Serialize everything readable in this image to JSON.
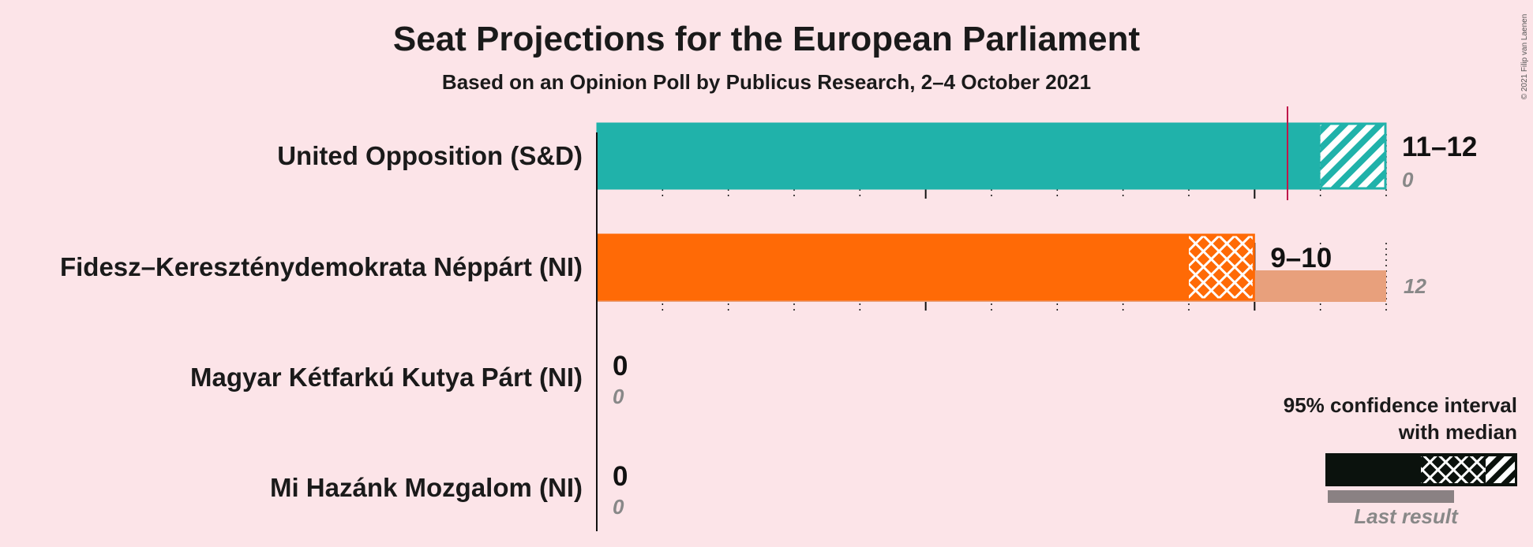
{
  "title": "Seat Projections for the European Parliament",
  "subtitle": "Based on an Opinion Poll by Publicus Research, 2–4 October 2021",
  "copyright": "© 2021 Filip van Laenen",
  "legend": {
    "line1": "95% confidence interval",
    "line2": "with median",
    "last_result": "Last result"
  },
  "colors": {
    "background": "#fce4e8",
    "legend_bar": "#0b120d",
    "majority_line": "#c0174a"
  },
  "chart_data": {
    "type": "bar",
    "orientation": "horizontal",
    "xlim": [
      0,
      12
    ],
    "categories": [
      "United Opposition (S&D)",
      "Fidesz–Kereszténydemokrata Néppárt (NI)",
      "Magyar Kétfarkú Kutya Párt (NI)",
      "Mi Hazánk Mozgalom (NI)"
    ],
    "series": [
      {
        "ci_low": 11,
        "median": 11,
        "ci_high": 12,
        "range_label": "11–12",
        "last_result": 0,
        "last_label": "0",
        "color": "#20b2aa",
        "last_color": "#20b2aa"
      },
      {
        "ci_low": 9,
        "median": 10,
        "ci_high": 10,
        "range_label": "9–10",
        "last_result": 12,
        "last_label": "12",
        "color": "#ff6a06",
        "last_color": "#e8a07c"
      },
      {
        "ci_low": 0,
        "median": 0,
        "ci_high": 0,
        "range_label": "0",
        "last_result": 0,
        "last_label": "0",
        "color": "#888888",
        "last_color": "#888888"
      },
      {
        "ci_low": 0,
        "median": 0,
        "ci_high": 0,
        "range_label": "0",
        "last_result": 0,
        "last_label": "0",
        "color": "#888888",
        "last_color": "#888888"
      }
    ],
    "majority_marker": 10.5
  }
}
